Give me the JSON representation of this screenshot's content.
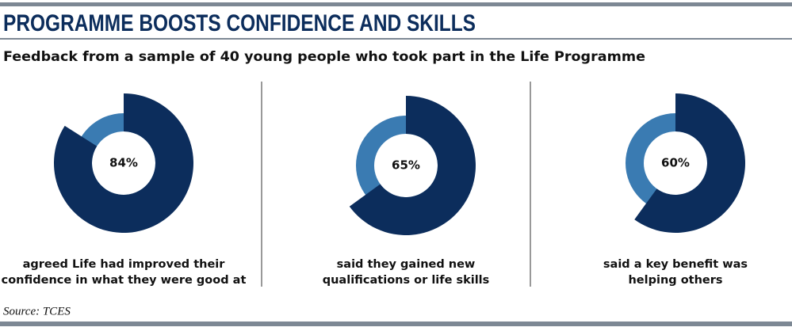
{
  "title": "PROGRAMME BOOSTS CONFIDENCE AND SKILLS",
  "subtitle": "Feedback from a sample of 40 young people who took part in the Life Programme",
  "source": "Source: TCES",
  "chart_data": [
    {
      "type": "donut",
      "values": [
        84
      ],
      "value_labels": [
        "84%"
      ],
      "color": "#0c2d5c",
      "track_color": "#3a7bb2",
      "caption": [
        "agreed Life had improved their",
        "confidence in what they were good at"
      ]
    },
    {
      "type": "donut",
      "values": [
        65
      ],
      "value_labels": [
        "65%"
      ],
      "color": "#0c2d5c",
      "track_color": "#3a7bb2",
      "caption": [
        "said they gained new",
        "qualifications or life skills"
      ]
    },
    {
      "type": "donut",
      "values": [
        60
      ],
      "value_labels": [
        "60%"
      ],
      "color": "#0c2d5c",
      "track_color": "#3a7bb2",
      "caption": [
        "said a key benefit was",
        "helping others"
      ]
    }
  ]
}
